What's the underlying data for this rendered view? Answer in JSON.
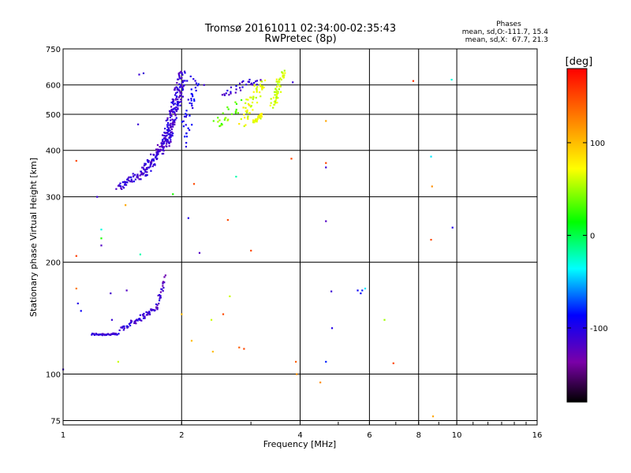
{
  "chart_data": {
    "type": "scatter",
    "title": "Tromsø 20161011 02:34:00-02:35:43",
    "subtitle": "RwPretec (8p)",
    "xlabel": "Frequency [MHz]",
    "ylabel": "Stationary phase Virtual Height [km]",
    "x_scale": "log",
    "y_scale": "log",
    "xlim": [
      1,
      16
    ],
    "ylim": [
      73,
      750
    ],
    "x_ticks": [
      1,
      2,
      4,
      6,
      8,
      10,
      16
    ],
    "y_ticks": [
      75,
      100,
      200,
      300,
      400,
      500,
      600,
      750
    ],
    "grid": true,
    "phases_info": {
      "heading": "Phases",
      "line1": "mean, sd,O:-111.7, 15.4",
      "line2": "mean, sd,X:  67.7, 21.3"
    },
    "colorbar": {
      "label": "[deg]",
      "range": [
        -180,
        180
      ],
      "ticks": [
        100,
        0,
        -100
      ],
      "colormap": [
        "#000000",
        "#7a00a8",
        "#0000ff",
        "#00ffff",
        "#00ff00",
        "#ffff00",
        "#ff8000",
        "#ff0000"
      ]
    },
    "traces": [
      {
        "x0": 1.18,
        "x1": 1.38,
        "y0": 128,
        "y1": 128,
        "phase": -110,
        "n": 40,
        "spread": 0.008
      },
      {
        "x0": 1.4,
        "x1": 1.72,
        "y0": 132,
        "y1": 150,
        "phase": -112,
        "n": 60,
        "spread": 0.02
      },
      {
        "x0": 1.72,
        "x1": 1.82,
        "y0": 150,
        "y1": 182,
        "phase": -118,
        "n": 25,
        "spread": 0.02
      },
      {
        "x0": 1.38,
        "x1": 1.62,
        "y0": 320,
        "y1": 350,
        "phase": -110,
        "n": 55,
        "spread": 0.03
      },
      {
        "x0": 1.6,
        "x1": 1.88,
        "y0": 350,
        "y1": 440,
        "phase": -112,
        "n": 110,
        "spread": 0.04
      },
      {
        "x0": 1.82,
        "x1": 2.02,
        "y0": 420,
        "y1": 640,
        "phase": -110,
        "n": 170,
        "spread": 0.05
      },
      {
        "x0": 2.02,
        "x1": 2.18,
        "y0": 420,
        "y1": 630,
        "phase": -95,
        "n": 40,
        "spread": 0.06
      },
      {
        "x0": 2.45,
        "x1": 2.8,
        "y0": 470,
        "y1": 530,
        "phase": 40,
        "n": 25,
        "spread": 0.05
      },
      {
        "x0": 2.85,
        "x1": 3.2,
        "y0": 480,
        "y1": 620,
        "phase": 68,
        "n": 55,
        "spread": 0.05
      },
      {
        "x0": 3.05,
        "x1": 3.2,
        "y0": 475,
        "y1": 500,
        "phase": 70,
        "n": 30,
        "spread": 0.015
      },
      {
        "x0": 3.4,
        "x1": 3.62,
        "y0": 530,
        "y1": 650,
        "phase": 62,
        "n": 55,
        "spread": 0.04
      },
      {
        "x0": 2.55,
        "x1": 3.15,
        "y0": 570,
        "y1": 620,
        "phase": -110,
        "n": 30,
        "spread": 0.03
      }
    ],
    "points": [
      {
        "x": 1.0,
        "y": 103,
        "phase": -110
      },
      {
        "x": 1.08,
        "y": 375,
        "phase": 150
      },
      {
        "x": 1.08,
        "y": 208,
        "phase": 155
      },
      {
        "x": 1.08,
        "y": 170,
        "phase": 130
      },
      {
        "x": 1.09,
        "y": 155,
        "phase": -100
      },
      {
        "x": 1.11,
        "y": 148,
        "phase": -90
      },
      {
        "x": 1.22,
        "y": 300,
        "phase": -110
      },
      {
        "x": 1.25,
        "y": 245,
        "phase": -30
      },
      {
        "x": 1.25,
        "y": 232,
        "phase": 20
      },
      {
        "x": 1.25,
        "y": 222,
        "phase": -120
      },
      {
        "x": 1.32,
        "y": 165,
        "phase": -115
      },
      {
        "x": 1.33,
        "y": 140,
        "phase": -110
      },
      {
        "x": 1.38,
        "y": 108,
        "phase": 60
      },
      {
        "x": 1.44,
        "y": 285,
        "phase": 110
      },
      {
        "x": 1.45,
        "y": 168,
        "phase": -120
      },
      {
        "x": 1.56,
        "y": 640,
        "phase": -110
      },
      {
        "x": 1.6,
        "y": 645,
        "phase": -110
      },
      {
        "x": 1.57,
        "y": 210,
        "phase": -20
      },
      {
        "x": 1.55,
        "y": 470,
        "phase": -110
      },
      {
        "x": 1.9,
        "y": 305,
        "phase": 20
      },
      {
        "x": 2.0,
        "y": 145,
        "phase": 100
      },
      {
        "x": 2.08,
        "y": 263,
        "phase": -100
      },
      {
        "x": 2.12,
        "y": 123,
        "phase": 100
      },
      {
        "x": 2.15,
        "y": 325,
        "phase": 150
      },
      {
        "x": 2.22,
        "y": 212,
        "phase": -120
      },
      {
        "x": 2.28,
        "y": 600,
        "phase": -110
      },
      {
        "x": 2.38,
        "y": 140,
        "phase": 60
      },
      {
        "x": 2.4,
        "y": 115,
        "phase": 100
      },
      {
        "x": 2.55,
        "y": 145,
        "phase": 150
      },
      {
        "x": 2.62,
        "y": 260,
        "phase": 150
      },
      {
        "x": 2.65,
        "y": 162,
        "phase": 60
      },
      {
        "x": 2.75,
        "y": 340,
        "phase": -20
      },
      {
        "x": 2.8,
        "y": 118,
        "phase": 140
      },
      {
        "x": 2.88,
        "y": 117,
        "phase": 150
      },
      {
        "x": 3.0,
        "y": 215,
        "phase": 150
      },
      {
        "x": 3.8,
        "y": 380,
        "phase": 150
      },
      {
        "x": 3.83,
        "y": 610,
        "phase": -110
      },
      {
        "x": 3.9,
        "y": 108,
        "phase": 140
      },
      {
        "x": 3.92,
        "y": 100,
        "phase": 120
      },
      {
        "x": 4.5,
        "y": 95,
        "phase": 120
      },
      {
        "x": 4.65,
        "y": 480,
        "phase": 110
      },
      {
        "x": 4.65,
        "y": 370,
        "phase": 150
      },
      {
        "x": 4.65,
        "y": 360,
        "phase": -110
      },
      {
        "x": 4.65,
        "y": 258,
        "phase": -120
      },
      {
        "x": 4.65,
        "y": 108,
        "phase": -80
      },
      {
        "x": 4.8,
        "y": 167,
        "phase": -110
      },
      {
        "x": 4.82,
        "y": 133,
        "phase": -100
      },
      {
        "x": 5.6,
        "y": 168,
        "phase": -90
      },
      {
        "x": 5.7,
        "y": 165,
        "phase": -90
      },
      {
        "x": 5.75,
        "y": 168,
        "phase": -80
      },
      {
        "x": 5.85,
        "y": 170,
        "phase": -40
      },
      {
        "x": 6.55,
        "y": 140,
        "phase": 50
      },
      {
        "x": 6.9,
        "y": 107,
        "phase": 150
      },
      {
        "x": 7.75,
        "y": 615,
        "phase": 160
      },
      {
        "x": 8.6,
        "y": 385,
        "phase": -40
      },
      {
        "x": 8.65,
        "y": 320,
        "phase": 120
      },
      {
        "x": 8.6,
        "y": 230,
        "phase": 150
      },
      {
        "x": 8.7,
        "y": 77,
        "phase": 110
      },
      {
        "x": 9.7,
        "y": 620,
        "phase": -30
      },
      {
        "x": 9.75,
        "y": 248,
        "phase": -100
      }
    ]
  }
}
